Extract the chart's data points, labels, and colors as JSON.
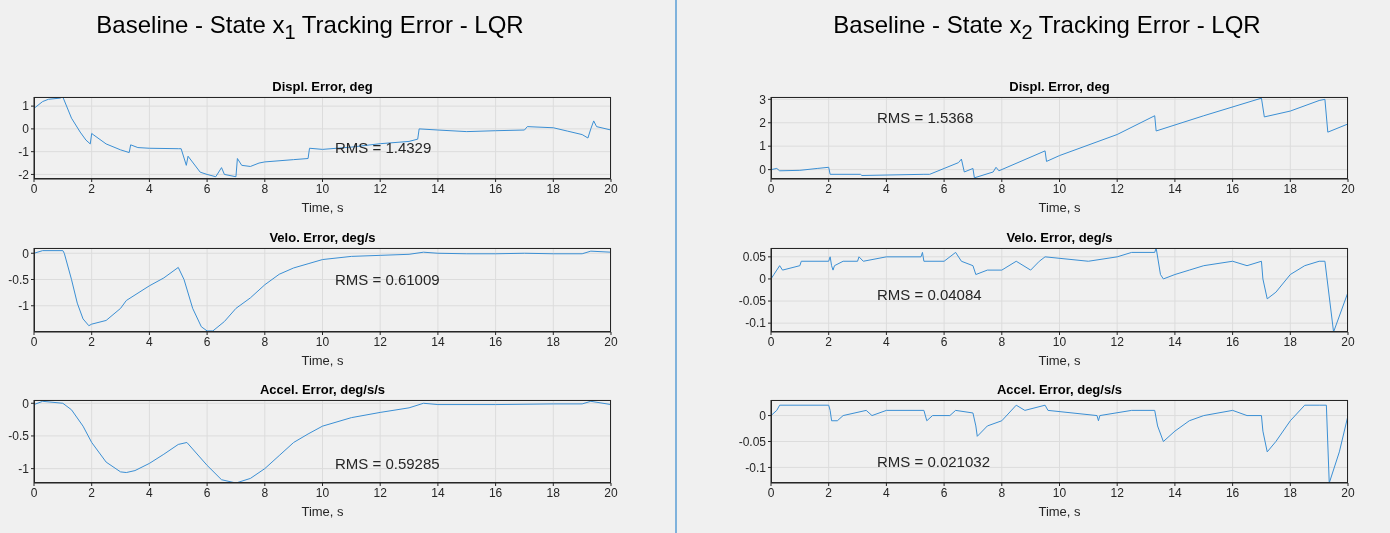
{
  "chart_data": [
    {
      "type": "line",
      "title": "Baseline - State x$_{1}$ Tracking Error - LQR",
      "subtitle": "Displ. Error, deg",
      "xlabel": "Time, s",
      "annotations": [
        "RMS = 1.4329"
      ],
      "grid": true,
      "color": "#3b8fd4",
      "xlim": [
        0,
        20
      ],
      "xticks": [
        0,
        2,
        4,
        6,
        8,
        10,
        12,
        14,
        16,
        18,
        20
      ],
      "ylim": [
        -2.2,
        1.4
      ],
      "yticks": [
        -2,
        -1,
        0,
        1
      ],
      "x": [
        0,
        0.3,
        0.5,
        0.9,
        1.0,
        1.3,
        1.6,
        1.8,
        1.95,
        2.0,
        2.05,
        2.5,
        3.0,
        3.3,
        3.35,
        3.6,
        4,
        5,
        5.1,
        5.28,
        5.34,
        5.76,
        6,
        6.3,
        6.5,
        6.6,
        7.0,
        7.05,
        7.2,
        7.5,
        7.8,
        8,
        9,
        9.5,
        9.55,
        10,
        11,
        12,
        13,
        13.3,
        13.35,
        14,
        15,
        16,
        17,
        17.1,
        18,
        18.5,
        19,
        19.2,
        19.3,
        19.4,
        19.5,
        20
      ],
      "values": [
        0.9,
        1.2,
        1.3,
        1.35,
        1.4,
        0.47,
        -0.14,
        -0.49,
        -0.66,
        -0.2,
        -0.25,
        -0.66,
        -0.92,
        -1.04,
        -0.7,
        -0.82,
        -0.85,
        -0.87,
        -0.87,
        -1.6,
        -1.2,
        -1.9,
        -2.0,
        -2.1,
        -1.7,
        -2.0,
        -2.1,
        -1.3,
        -1.6,
        -1.65,
        -1.5,
        -1.45,
        -1.35,
        -1.3,
        -0.85,
        -0.9,
        -0.8,
        -0.65,
        -0.55,
        -0.45,
        0.0,
        -0.05,
        -0.12,
        -0.08,
        -0.05,
        0.1,
        0.05,
        -0.1,
        -0.25,
        -0.4,
        0.0,
        0.35,
        0.1,
        -0.05
      ]
    },
    {
      "type": "line",
      "title": "Velo. Error, deg/s",
      "xlabel": "Time, s",
      "annotations": [
        "RMS = 0.61009"
      ],
      "grid": true,
      "color": "#3b8fd4",
      "xlim": [
        0,
        20
      ],
      "xticks": [
        0,
        2,
        4,
        6,
        8,
        10,
        12,
        14,
        16,
        18,
        20
      ],
      "ylim": [
        -1.5,
        0.1
      ],
      "yticks": [
        -1,
        -0.5,
        0
      ],
      "x": [
        0,
        0.3,
        1.0,
        1.05,
        1.3,
        1.5,
        1.7,
        1.9,
        2.0,
        2.5,
        3.0,
        3.2,
        4,
        4.5,
        5.0,
        5.2,
        5.5,
        5.8,
        6.0,
        6.2,
        6.6,
        7.0,
        7.5,
        8,
        8.5,
        9,
        9.5,
        10,
        11,
        12,
        13,
        13.5,
        14,
        15,
        16,
        17,
        18,
        19,
        19.3,
        20
      ],
      "values": [
        0.0,
        0.05,
        0.05,
        0.0,
        -0.5,
        -0.95,
        -1.25,
        -1.38,
        -1.35,
        -1.28,
        -1.05,
        -0.9,
        -0.62,
        -0.47,
        -0.27,
        -0.5,
        -1.05,
        -1.4,
        -1.48,
        -1.48,
        -1.3,
        -1.05,
        -0.85,
        -0.6,
        -0.4,
        -0.28,
        -0.2,
        -0.12,
        -0.06,
        -0.04,
        -0.02,
        0.02,
        0.0,
        -0.01,
        -0.01,
        0.0,
        -0.01,
        -0.01,
        0.04,
        0.02
      ]
    },
    {
      "type": "line",
      "title": "Accel. Error, deg/s/s",
      "xlabel": "Time, s",
      "annotations": [
        "RMS = 0.59285"
      ],
      "grid": true,
      "color": "#3b8fd4",
      "xlim": [
        0,
        20
      ],
      "xticks": [
        0,
        2,
        4,
        6,
        8,
        10,
        12,
        14,
        16,
        18,
        20
      ],
      "ylim": [
        -1.22,
        0.05
      ],
      "yticks": [
        -1,
        -0.5,
        0
      ],
      "x": [
        0,
        0.3,
        1.0,
        1.3,
        1.7,
        2.0,
        2.5,
        3.0,
        3.2,
        3.5,
        4,
        4.5,
        5.0,
        5.3,
        5.5,
        6,
        6.5,
        7,
        7.5,
        8,
        8.5,
        9,
        9.5,
        10,
        11,
        12,
        13,
        13.5,
        14,
        16,
        18,
        19,
        19.3,
        20
      ],
      "values": [
        -0.02,
        0.03,
        0.0,
        -0.1,
        -0.35,
        -0.6,
        -0.9,
        -1.05,
        -1.06,
        -1.03,
        -0.92,
        -0.78,
        -0.63,
        -0.6,
        -0.7,
        -0.95,
        -1.17,
        -1.22,
        -1.15,
        -1.0,
        -0.8,
        -0.6,
        -0.47,
        -0.35,
        -0.22,
        -0.14,
        -0.07,
        0.0,
        -0.02,
        -0.02,
        -0.01,
        -0.01,
        0.03,
        -0.02
      ]
    },
    {
      "type": "line",
      "title": "Baseline - State x$_{2}$ Tracking Error - LQR",
      "subtitle": "Displ. Error, deg",
      "xlabel": "Time, s",
      "annotations": [
        "RMS = 1.5368"
      ],
      "grid": true,
      "color": "#3b8fd4",
      "xlim": [
        0,
        20
      ],
      "xticks": [
        0,
        2,
        4,
        6,
        8,
        10,
        12,
        14,
        16,
        18,
        20
      ],
      "ylim": [
        -0.4,
        3.1
      ],
      "yticks": [
        0,
        1,
        2,
        3
      ],
      "x": [
        0,
        0.2,
        0.3,
        1,
        1.6,
        2.0,
        2.05,
        3.1,
        3.15,
        5.3,
        5.5,
        6,
        6.5,
        6.6,
        6.7,
        7.0,
        7.05,
        7.7,
        7.8,
        7.9,
        9.5,
        9.55,
        10,
        12,
        13.3,
        13.35,
        15,
        17,
        17.1,
        18,
        19,
        19.2,
        19.3,
        20
      ],
      "values": [
        0.0,
        0.05,
        -0.05,
        -0.03,
        0.05,
        0.1,
        -0.2,
        -0.2,
        -0.25,
        -0.2,
        -0.2,
        0.05,
        0.3,
        0.45,
        -0.1,
        0.05,
        -0.35,
        -0.1,
        0.1,
        -0.05,
        0.8,
        0.35,
        0.6,
        1.5,
        2.3,
        1.65,
        2.3,
        3.05,
        2.25,
        2.5,
        2.95,
        3.0,
        1.6,
        1.95
      ]
    },
    {
      "type": "line",
      "title": "Velo. Error, deg/s",
      "xlabel": "Time, s",
      "annotations": [
        "RMS = 0.04084"
      ],
      "grid": true,
      "color": "#3b8fd4",
      "xlim": [
        0,
        20
      ],
      "xticks": [
        0,
        2,
        4,
        6,
        8,
        10,
        12,
        14,
        16,
        18,
        20
      ],
      "ylim": [
        -0.12,
        0.07
      ],
      "yticks": [
        -0.1,
        -0.05,
        0,
        0.05
      ],
      "x": [
        0,
        0.1,
        0.2,
        0.3,
        0.4,
        1,
        1.05,
        2.0,
        2.05,
        2.1,
        2.15,
        2.2,
        2.5,
        3.0,
        3.05,
        3.2,
        4,
        5.2,
        5.25,
        5.3,
        6.0,
        6.4,
        6.6,
        7.0,
        7.1,
        7.5,
        8.0,
        8.5,
        9,
        9.3,
        9.5,
        11,
        12,
        12.5,
        13.3,
        13.35,
        13.5,
        13.6,
        14,
        14.5,
        15,
        16,
        16.5,
        17.0,
        17.05,
        17.2,
        17.5,
        18,
        18.5,
        19,
        19.2,
        19.5,
        20
      ],
      "values": [
        0,
        0.01,
        0.02,
        0.03,
        0.02,
        0.03,
        0.04,
        0.04,
        0.05,
        0.03,
        0.02,
        0.03,
        0.04,
        0.04,
        0.05,
        0.04,
        0.05,
        0.05,
        0.06,
        0.04,
        0.04,
        0.06,
        0.04,
        0.03,
        0.01,
        0.02,
        0.02,
        0.04,
        0.02,
        0.04,
        0.05,
        0.04,
        0.05,
        0.06,
        0.06,
        0.07,
        0.01,
        0.0,
        0.01,
        0.02,
        0.03,
        0.04,
        0.03,
        0.04,
        0.0,
        -0.045,
        -0.03,
        0.01,
        0.03,
        0.04,
        0.04,
        -0.12,
        -0.03
      ]
    },
    {
      "type": "line",
      "title": "Accel. Error, deg/s/s",
      "xlabel": "Time, s",
      "annotations": [
        "RMS = 0.021032"
      ],
      "grid": true,
      "color": "#3b8fd4",
      "xlim": [
        0,
        20
      ],
      "xticks": [
        0,
        2,
        4,
        6,
        8,
        10,
        12,
        14,
        16,
        18,
        20
      ],
      "ylim": [
        -0.13,
        0.03
      ],
      "yticks": [
        -0.1,
        -0.05,
        0
      ],
      "x": [
        0,
        0.2,
        0.3,
        2.0,
        2.05,
        2.1,
        2.3,
        2.5,
        3.3,
        3.5,
        4,
        5.3,
        5.4,
        5.6,
        6.2,
        6.4,
        7.0,
        7.1,
        7.15,
        7.5,
        8.0,
        8.5,
        8.8,
        9.5,
        9.6,
        11.3,
        11.35,
        11.4,
        12.5,
        13.3,
        13.4,
        13.6,
        14,
        14.5,
        15,
        16,
        16.5,
        17.0,
        17.05,
        17.2,
        17.5,
        18,
        18.5,
        19.0,
        19.25,
        19.35,
        19.7,
        20
      ],
      "values": [
        0,
        0.01,
        0.02,
        0.02,
        0.01,
        -0.01,
        -0.01,
        0,
        0.01,
        0,
        0.01,
        0.01,
        -0.01,
        0,
        0,
        0.01,
        0.005,
        -0.02,
        -0.04,
        -0.02,
        -0.01,
        0.02,
        0.01,
        0.02,
        0.01,
        0,
        -0.01,
        0,
        0.01,
        0.01,
        -0.02,
        -0.05,
        -0.03,
        -0.01,
        0,
        0.01,
        0,
        0,
        -0.03,
        -0.07,
        -0.05,
        -0.01,
        0.02,
        0.02,
        0.02,
        -0.13,
        -0.07,
        0
      ]
    }
  ]
}
